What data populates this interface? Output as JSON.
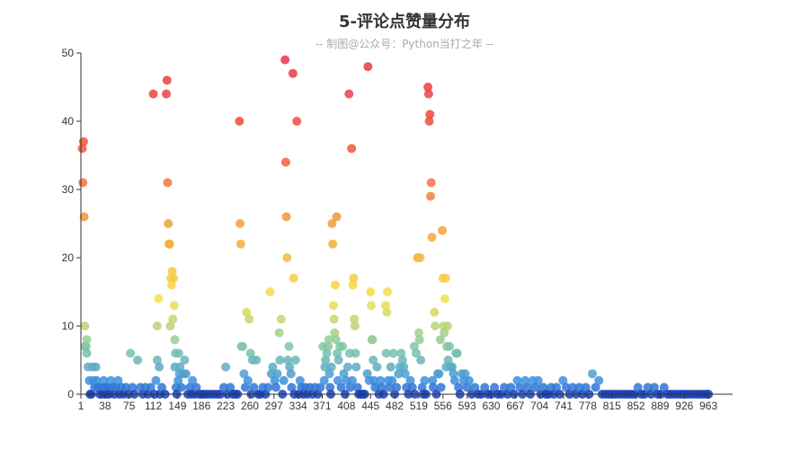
{
  "chart_data": {
    "type": "scatter",
    "title": "5-评论点赞量分布",
    "subtitle": "-- 制图@公众号：Python当打之年 --",
    "xlabel": "",
    "ylabel": "",
    "xlim": [
      1,
      1000
    ],
    "ylim": [
      0,
      50
    ],
    "x_ticks": [
      "1",
      "38",
      "75",
      "112",
      "149",
      "186",
      "223",
      "260",
      "297",
      "334",
      "371",
      "408",
      "445",
      "482",
      "519",
      "556",
      "593",
      "630",
      "667",
      "704",
      "741",
      "778",
      "815",
      "852",
      "889",
      "926",
      "963"
    ],
    "y_ticks": [
      "0",
      "10",
      "20",
      "30",
      "40",
      "50"
    ],
    "grid": false,
    "legend": "none",
    "color_scale": {
      "min": 0,
      "max": 50,
      "colors": [
        "#1a3fb8",
        "#3b8fe0",
        "#7fc6a8",
        "#f7e14a",
        "#f6a33a",
        "#f2573a",
        "#e8334a"
      ]
    },
    "points": [
      [
        3,
        36
      ],
      [
        5,
        37
      ],
      [
        4,
        31
      ],
      [
        6,
        26
      ],
      [
        7,
        10
      ],
      [
        7,
        7
      ],
      [
        9,
        7
      ],
      [
        10,
        8
      ],
      [
        10,
        6
      ],
      [
        12,
        4
      ],
      [
        14,
        2
      ],
      [
        15,
        0
      ],
      [
        17,
        0
      ],
      [
        19,
        4
      ],
      [
        20,
        2
      ],
      [
        22,
        1
      ],
      [
        24,
        4
      ],
      [
        25,
        2
      ],
      [
        27,
        1
      ],
      [
        30,
        0
      ],
      [
        32,
        1
      ],
      [
        34,
        0
      ],
      [
        36,
        2
      ],
      [
        38,
        1
      ],
      [
        40,
        0
      ],
      [
        42,
        1
      ],
      [
        44,
        0
      ],
      [
        47,
        2
      ],
      [
        50,
        1
      ],
      [
        52,
        0
      ],
      [
        55,
        1
      ],
      [
        58,
        2
      ],
      [
        60,
        0
      ],
      [
        63,
        1
      ],
      [
        66,
        0
      ],
      [
        70,
        1
      ],
      [
        74,
        0
      ],
      [
        77,
        6
      ],
      [
        80,
        1
      ],
      [
        83,
        0
      ],
      [
        88,
        5
      ],
      [
        92,
        1
      ],
      [
        96,
        0
      ],
      [
        100,
        1
      ],
      [
        104,
        0
      ],
      [
        108,
        1
      ],
      [
        112,
        44
      ],
      [
        114,
        0
      ],
      [
        116,
        2
      ],
      [
        118,
        5
      ],
      [
        118,
        10
      ],
      [
        120,
        14
      ],
      [
        121,
        4
      ],
      [
        122,
        0
      ],
      [
        125,
        1
      ],
      [
        130,
        0
      ],
      [
        132,
        44
      ],
      [
        133,
        46
      ],
      [
        134,
        31
      ],
      [
        135,
        25
      ],
      [
        136,
        22
      ],
      [
        137,
        22
      ],
      [
        138,
        10
      ],
      [
        139,
        17
      ],
      [
        140,
        16
      ],
      [
        141,
        18
      ],
      [
        142,
        11
      ],
      [
        143,
        17
      ],
      [
        144,
        13
      ],
      [
        145,
        8
      ],
      [
        145,
        4
      ],
      [
        146,
        6
      ],
      [
        147,
        1
      ],
      [
        148,
        0
      ],
      [
        150,
        2
      ],
      [
        151,
        6
      ],
      [
        152,
        3
      ],
      [
        153,
        4
      ],
      [
        155,
        1
      ],
      [
        158,
        3
      ],
      [
        160,
        5
      ],
      [
        162,
        3
      ],
      [
        165,
        0
      ],
      [
        168,
        1
      ],
      [
        170,
        0
      ],
      [
        172,
        2
      ],
      [
        175,
        0
      ],
      [
        178,
        1
      ],
      [
        182,
        0
      ],
      [
        186,
        0
      ],
      [
        190,
        0
      ],
      [
        195,
        0
      ],
      [
        200,
        0
      ],
      [
        205,
        0
      ],
      [
        210,
        0
      ],
      [
        215,
        0
      ],
      [
        220,
        1
      ],
      [
        223,
        4
      ],
      [
        226,
        0
      ],
      [
        230,
        1
      ],
      [
        234,
        0
      ],
      [
        238,
        0
      ],
      [
        241,
        0
      ],
      [
        244,
        40
      ],
      [
        245,
        25
      ],
      [
        246,
        22
      ],
      [
        247,
        7
      ],
      [
        249,
        7
      ],
      [
        251,
        3
      ],
      [
        253,
        1
      ],
      [
        255,
        12
      ],
      [
        257,
        2
      ],
      [
        259,
        11
      ],
      [
        261,
        6
      ],
      [
        262,
        0
      ],
      [
        264,
        5
      ],
      [
        266,
        1
      ],
      [
        270,
        5
      ],
      [
        273,
        0
      ],
      [
        276,
        0
      ],
      [
        280,
        1
      ],
      [
        284,
        0
      ],
      [
        288,
        1
      ],
      [
        291,
        15
      ],
      [
        293,
        3
      ],
      [
        295,
        4
      ],
      [
        298,
        2
      ],
      [
        300,
        1
      ],
      [
        302,
        3
      ],
      [
        305,
        9
      ],
      [
        306,
        5
      ],
      [
        308,
        11
      ],
      [
        310,
        0
      ],
      [
        312,
        2
      ],
      [
        314,
        49
      ],
      [
        315,
        34
      ],
      [
        316,
        26
      ],
      [
        317,
        20
      ],
      [
        318,
        5
      ],
      [
        320,
        7
      ],
      [
        321,
        4
      ],
      [
        323,
        3
      ],
      [
        324,
        1
      ],
      [
        326,
        47
      ],
      [
        327,
        17
      ],
      [
        328,
        0
      ],
      [
        330,
        5
      ],
      [
        332,
        40
      ],
      [
        335,
        0
      ],
      [
        337,
        2
      ],
      [
        339,
        1
      ],
      [
        342,
        0
      ],
      [
        345,
        1
      ],
      [
        348,
        0
      ],
      [
        352,
        1
      ],
      [
        356,
        0
      ],
      [
        360,
        1
      ],
      [
        364,
        0
      ],
      [
        368,
        1
      ],
      [
        372,
        7
      ],
      [
        374,
        2
      ],
      [
        375,
        4
      ],
      [
        376,
        5
      ],
      [
        378,
        6
      ],
      [
        380,
        7
      ],
      [
        381,
        8
      ],
      [
        382,
        3
      ],
      [
        383,
        1
      ],
      [
        384,
        0
      ],
      [
        385,
        4
      ],
      [
        386,
        25
      ],
      [
        387,
        22
      ],
      [
        388,
        13
      ],
      [
        389,
        11
      ],
      [
        390,
        9
      ],
      [
        391,
        16
      ],
      [
        392,
        8
      ],
      [
        393,
        26
      ],
      [
        394,
        6
      ],
      [
        395,
        2
      ],
      [
        396,
        5
      ],
      [
        398,
        7
      ],
      [
        400,
        1
      ],
      [
        402,
        7
      ],
      [
        404,
        3
      ],
      [
        406,
        0
      ],
      [
        408,
        2
      ],
      [
        410,
        4
      ],
      [
        412,
        44
      ],
      [
        413,
        6
      ],
      [
        414,
        1
      ],
      [
        416,
        36
      ],
      [
        417,
        2
      ],
      [
        418,
        16
      ],
      [
        419,
        17
      ],
      [
        420,
        11
      ],
      [
        421,
        10
      ],
      [
        422,
        6
      ],
      [
        423,
        4
      ],
      [
        425,
        1
      ],
      [
        427,
        0
      ],
      [
        430,
        0
      ],
      [
        433,
        0
      ],
      [
        436,
        0
      ],
      [
        440,
        3
      ],
      [
        441,
        48
      ],
      [
        443,
        2
      ],
      [
        445,
        15
      ],
      [
        446,
        13
      ],
      [
        447,
        8
      ],
      [
        448,
        8
      ],
      [
        449,
        5
      ],
      [
        450,
        2
      ],
      [
        452,
        1
      ],
      [
        455,
        4
      ],
      [
        458,
        0
      ],
      [
        460,
        2
      ],
      [
        462,
        1
      ],
      [
        465,
        0
      ],
      [
        468,
        13
      ],
      [
        469,
        6
      ],
      [
        470,
        12
      ],
      [
        471,
        15
      ],
      [
        472,
        2
      ],
      [
        474,
        1
      ],
      [
        476,
        4
      ],
      [
        478,
        2
      ],
      [
        480,
        6
      ],
      [
        482,
        0
      ],
      [
        485,
        1
      ],
      [
        488,
        3
      ],
      [
        490,
        4
      ],
      [
        492,
        6
      ],
      [
        494,
        5
      ],
      [
        496,
        4
      ],
      [
        498,
        3
      ],
      [
        500,
        1
      ],
      [
        503,
        0
      ],
      [
        506,
        2
      ],
      [
        509,
        1
      ],
      [
        512,
        7
      ],
      [
        513,
        0
      ],
      [
        515,
        6
      ],
      [
        517,
        20
      ],
      [
        518,
        20
      ],
      [
        519,
        9
      ],
      [
        520,
        8
      ],
      [
        521,
        20
      ],
      [
        522,
        5
      ],
      [
        524,
        1
      ],
      [
        526,
        0
      ],
      [
        528,
        2
      ],
      [
        530,
        0
      ],
      [
        533,
        45
      ],
      [
        534,
        44
      ],
      [
        535,
        40
      ],
      [
        536,
        41
      ],
      [
        537,
        29
      ],
      [
        538,
        31
      ],
      [
        539,
        23
      ],
      [
        540,
        2
      ],
      [
        541,
        1
      ],
      [
        543,
        12
      ],
      [
        544,
        10
      ],
      [
        546,
        0
      ],
      [
        548,
        3
      ],
      [
        550,
        3
      ],
      [
        552,
        8
      ],
      [
        553,
        1
      ],
      [
        555,
        24
      ],
      [
        556,
        17
      ],
      [
        557,
        10
      ],
      [
        558,
        9
      ],
      [
        559,
        14
      ],
      [
        560,
        17
      ],
      [
        561,
        4
      ],
      [
        562,
        7
      ],
      [
        563,
        10
      ],
      [
        564,
        5
      ],
      [
        566,
        7
      ],
      [
        568,
        4
      ],
      [
        570,
        4
      ],
      [
        572,
        3
      ],
      [
        574,
        2
      ],
      [
        576,
        6
      ],
      [
        578,
        6
      ],
      [
        580,
        1
      ],
      [
        582,
        0
      ],
      [
        585,
        3
      ],
      [
        588,
        2
      ],
      [
        590,
        3
      ],
      [
        593,
        1
      ],
      [
        596,
        2
      ],
      [
        600,
        0
      ],
      [
        605,
        1
      ],
      [
        610,
        0
      ],
      [
        615,
        0
      ],
      [
        620,
        1
      ],
      [
        625,
        0
      ],
      [
        630,
        0
      ],
      [
        635,
        1
      ],
      [
        640,
        0
      ],
      [
        645,
        0
      ],
      [
        650,
        1
      ],
      [
        655,
        0
      ],
      [
        660,
        1
      ],
      [
        665,
        0
      ],
      [
        670,
        2
      ],
      [
        674,
        1
      ],
      [
        678,
        0
      ],
      [
        682,
        2
      ],
      [
        686,
        1
      ],
      [
        690,
        0
      ],
      [
        694,
        2
      ],
      [
        698,
        1
      ],
      [
        702,
        2
      ],
      [
        706,
        0
      ],
      [
        710,
        1
      ],
      [
        714,
        0
      ],
      [
        718,
        0
      ],
      [
        722,
        1
      ],
      [
        726,
        0
      ],
      [
        730,
        1
      ],
      [
        735,
        0
      ],
      [
        740,
        2
      ],
      [
        745,
        1
      ],
      [
        750,
        0
      ],
      [
        755,
        1
      ],
      [
        760,
        0
      ],
      [
        765,
        1
      ],
      [
        770,
        0
      ],
      [
        775,
        1
      ],
      [
        780,
        0
      ],
      [
        785,
        3
      ],
      [
        790,
        1
      ],
      [
        795,
        2
      ],
      [
        800,
        0
      ],
      [
        805,
        0
      ],
      [
        810,
        0
      ],
      [
        815,
        0
      ],
      [
        820,
        0
      ],
      [
        825,
        0
      ],
      [
        830,
        0
      ],
      [
        835,
        0
      ],
      [
        840,
        0
      ],
      [
        845,
        0
      ],
      [
        850,
        0
      ],
      [
        855,
        1
      ],
      [
        860,
        0
      ],
      [
        865,
        0
      ],
      [
        870,
        1
      ],
      [
        875,
        0
      ],
      [
        880,
        1
      ],
      [
        885,
        0
      ],
      [
        890,
        0
      ],
      [
        895,
        1
      ],
      [
        900,
        0
      ],
      [
        905,
        0
      ],
      [
        910,
        0
      ],
      [
        915,
        0
      ],
      [
        920,
        0
      ],
      [
        925,
        0
      ],
      [
        930,
        0
      ],
      [
        935,
        0
      ],
      [
        940,
        0
      ],
      [
        945,
        0
      ],
      [
        950,
        0
      ],
      [
        955,
        0
      ],
      [
        960,
        0
      ],
      [
        963,
        0
      ]
    ]
  }
}
